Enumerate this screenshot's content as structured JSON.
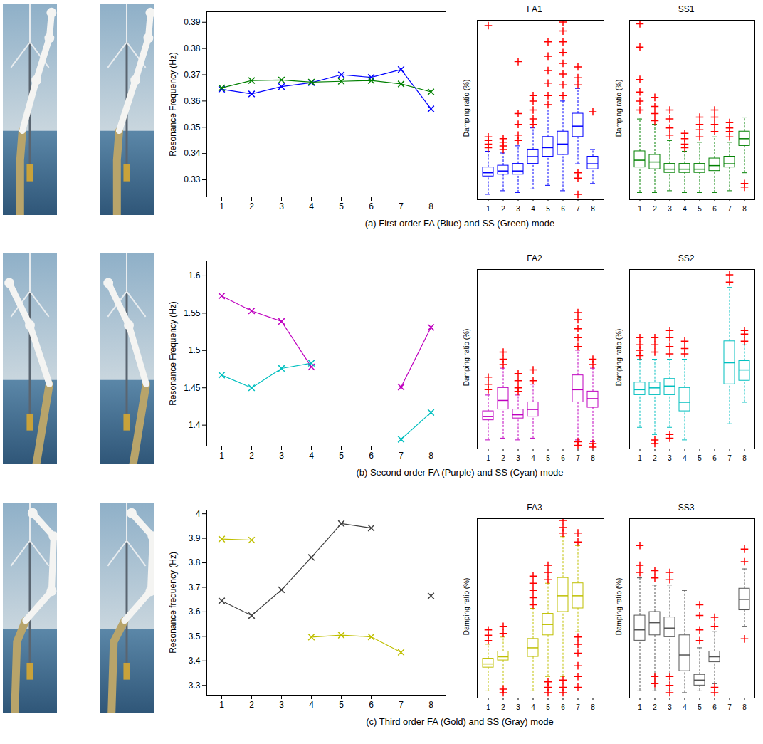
{
  "chart_data": [
    {
      "type": "line",
      "caption": "(a) First order FA (Blue) and SS (Green) mode",
      "ylabel": "Resonance Frequency (Hz)",
      "x": [
        1,
        2,
        3,
        4,
        5,
        6,
        7,
        8
      ],
      "xlim": [
        0.5,
        8.5
      ],
      "xticks": [
        1,
        2,
        3,
        4,
        5,
        6,
        7,
        8
      ],
      "ylim": [
        0.3235,
        0.394
      ],
      "yticks": [
        0.33,
        0.34,
        0.35,
        0.36,
        0.37,
        0.38,
        0.39
      ],
      "marker": "x",
      "series": [
        {
          "color": "#0000ff",
          "values": [
            0.3645,
            0.3627,
            0.3655,
            0.367,
            0.37,
            0.369,
            0.372,
            0.357
          ]
        },
        {
          "color": "#008000",
          "values": [
            0.365,
            0.3678,
            0.368,
            0.3672,
            0.3675,
            0.3678,
            0.3665,
            0.3635
          ]
        }
      ]
    },
    {
      "type": "box",
      "title": "FA1",
      "ylabel": "Damping ratio (%)",
      "categories": [
        "1",
        "2",
        "3",
        "4",
        "5",
        "6",
        "7",
        "8"
      ],
      "ylim": [
        0,
        1
      ],
      "tick_labels": "x",
      "color": "#0000ff",
      "boxes": {
        "low": [
          0.03,
          0.05,
          0.04,
          0.06,
          0.08,
          0.05,
          0.2,
          0.09
        ],
        "q1": [
          0.13,
          0.14,
          0.14,
          0.2,
          0.24,
          0.25,
          0.35,
          0.17
        ],
        "median": [
          0.15,
          0.16,
          0.16,
          0.24,
          0.29,
          0.31,
          0.41,
          0.2
        ],
        "q3": [
          0.18,
          0.19,
          0.2,
          0.28,
          0.35,
          0.38,
          0.48,
          0.24
        ],
        "high": [
          0.27,
          0.26,
          0.3,
          0.4,
          0.5,
          0.55,
          0.62,
          0.28
        ],
        "outliers": [
          [
            0.29,
            0.31,
            0.33,
            0.35,
            0.97
          ],
          [
            0.28,
            0.3,
            0.32,
            0.34
          ],
          [
            0.33,
            0.36,
            0.42,
            0.48,
            0.77
          ],
          [
            0.42,
            0.45,
            0.5,
            0.55,
            0.58
          ],
          [
            0.53,
            0.58,
            0.65,
            0.72,
            0.8,
            0.88
          ],
          [
            0.58,
            0.64,
            0.7,
            0.76,
            0.82,
            0.88,
            0.94,
            0.99
          ],
          [
            0.03,
            0.12,
            0.15,
            0.64,
            0.68,
            0.74
          ],
          [
            0.49
          ]
        ]
      }
    },
    {
      "type": "box",
      "title": "SS1",
      "ylabel": "Damping ratio (%)",
      "categories": [
        "1",
        "2",
        "3",
        "4",
        "5",
        "6",
        "7",
        "8"
      ],
      "ylim": [
        0,
        1
      ],
      "tick_labels": "x",
      "color": "#008000",
      "boxes": {
        "low": [
          0.04,
          0.04,
          0.05,
          0.04,
          0.04,
          0.04,
          0.05,
          0.15
        ],
        "q1": [
          0.18,
          0.17,
          0.15,
          0.15,
          0.15,
          0.16,
          0.18,
          0.3
        ],
        "median": [
          0.22,
          0.21,
          0.17,
          0.17,
          0.17,
          0.19,
          0.2,
          0.34
        ],
        "q3": [
          0.27,
          0.25,
          0.2,
          0.2,
          0.2,
          0.23,
          0.24,
          0.38
        ],
        "high": [
          0.45,
          0.42,
          0.33,
          0.27,
          0.32,
          0.35,
          0.32,
          0.46
        ],
        "outliers": [
          [
            0.5,
            0.55,
            0.6,
            0.67,
            0.85,
            0.98
          ],
          [
            0.44,
            0.48,
            0.52,
            0.57
          ],
          [
            0.36,
            0.4,
            0.45,
            0.5
          ],
          [
            0.29,
            0.31,
            0.34,
            0.37
          ],
          [
            0.35,
            0.39,
            0.42,
            0.46
          ],
          [
            0.38,
            0.42,
            0.46,
            0.5
          ],
          [
            0.35,
            0.38,
            0.4,
            0.43
          ],
          [
            0.07,
            0.09
          ]
        ]
      }
    },
    {
      "type": "line",
      "caption": "(b) Second order FA (Purple) and SS (Cyan) mode",
      "ylabel": "Resonance Frequency (Hz)",
      "x": [
        1,
        2,
        3,
        4,
        5,
        6,
        7,
        8
      ],
      "xlim": [
        0.5,
        8.5
      ],
      "xticks": [
        1,
        2,
        3,
        4,
        5,
        6,
        7,
        8
      ],
      "ylim": [
        1.372,
        1.62
      ],
      "yticks": [
        1.4,
        1.45,
        1.5,
        1.55,
        1.6
      ],
      "marker": "x",
      "series": [
        {
          "color": "#bf00bf",
          "values": [
            1.573,
            1.553,
            1.539,
            1.478,
            null,
            null,
            1.451,
            1.531
          ]
        },
        {
          "color": "#00bfbf",
          "values": [
            1.467,
            1.45,
            1.476,
            1.483,
            null,
            null,
            1.381,
            1.417
          ]
        }
      ]
    },
    {
      "type": "box",
      "title": "FA2",
      "ylabel": "Damping ratio (%)",
      "categories": [
        "1",
        "2",
        "3",
        "4",
        "5",
        "6",
        "7",
        "8"
      ],
      "ylim": [
        0,
        1
      ],
      "tick_labels": "x",
      "color": "#bf00bf",
      "boxes": {
        "low": [
          0.05,
          0.06,
          0.05,
          0.06,
          null,
          null,
          0.05,
          0.04
        ],
        "q1": [
          0.16,
          0.22,
          0.17,
          0.18,
          null,
          null,
          0.26,
          0.23
        ],
        "median": [
          0.18,
          0.27,
          0.19,
          0.22,
          null,
          null,
          0.33,
          0.28
        ],
        "q3": [
          0.21,
          0.34,
          0.22,
          0.26,
          null,
          null,
          0.41,
          0.32
        ],
        "high": [
          0.3,
          0.45,
          0.3,
          0.36,
          null,
          null,
          0.55,
          0.45
        ],
        "outliers": [
          [
            0.33,
            0.36,
            0.4
          ],
          [
            0.47,
            0.5,
            0.54
          ],
          [
            0.32,
            0.34,
            0.38,
            0.42
          ],
          [
            0.38,
            0.44
          ],
          [],
          [],
          [
            0.02,
            0.04,
            0.57,
            0.62,
            0.67,
            0.72,
            0.76
          ],
          [
            0.01,
            0.03,
            0.47,
            0.5
          ]
        ]
      }
    },
    {
      "type": "box",
      "title": "SS2",
      "ylabel": "Damping ratio (%)",
      "categories": [
        "1",
        "2",
        "3",
        "4",
        "5",
        "6",
        "7",
        "8"
      ],
      "ylim": [
        0,
        1
      ],
      "tick_labels": "x",
      "color": "#00bfbf",
      "boxes": {
        "low": [
          0.12,
          0.08,
          0.12,
          0.05,
          null,
          null,
          0.14,
          0.26
        ],
        "q1": [
          0.3,
          0.3,
          0.3,
          0.21,
          null,
          null,
          0.36,
          0.38
        ],
        "median": [
          0.33,
          0.34,
          0.35,
          0.26,
          null,
          null,
          0.48,
          0.44
        ],
        "q3": [
          0.37,
          0.37,
          0.39,
          0.34,
          null,
          null,
          0.6,
          0.49
        ],
        "high": [
          0.5,
          0.5,
          0.5,
          0.5,
          null,
          null,
          0.9,
          0.58
        ],
        "outliers": [
          [
            0.52,
            0.55,
            0.58,
            0.62
          ],
          [
            0.03,
            0.05,
            0.54,
            0.58,
            0.62
          ],
          [
            0.06,
            0.08,
            0.53,
            0.57,
            0.62,
            0.66
          ],
          [
            0.53,
            0.56,
            0.6
          ],
          [],
          [],
          [
            0.93,
            0.97
          ],
          [
            0.6,
            0.64,
            0.66
          ]
        ]
      }
    },
    {
      "type": "line",
      "caption": "(c) Third order FA (Gold) and SS (Gray) mode",
      "ylabel": "Resonance frequency (Hz)",
      "x": [
        1,
        2,
        3,
        4,
        5,
        6,
        7,
        8
      ],
      "xlim": [
        0.5,
        8.5
      ],
      "xticks": [
        1,
        2,
        3,
        4,
        5,
        6,
        7,
        8
      ],
      "ylim": [
        3.26,
        4.015
      ],
      "yticks": [
        3.3,
        3.4,
        3.5,
        3.6,
        3.7,
        3.8,
        3.9,
        4
      ],
      "marker": "x",
      "series": [
        {
          "color": "#bfbf00",
          "values": [
            3.897,
            3.893,
            null,
            3.497,
            3.505,
            3.498,
            3.435,
            null
          ]
        },
        {
          "color": "#404040",
          "values": [
            3.645,
            3.585,
            3.69,
            3.822,
            3.96,
            3.942,
            null,
            3.665
          ]
        }
      ]
    },
    {
      "type": "box",
      "title": "FA3",
      "ylabel": "Damping ratio (%)",
      "categories": [
        "1",
        "2",
        "3",
        "4",
        "5",
        "6",
        "7",
        "8"
      ],
      "ylim": [
        0,
        1
      ],
      "tick_labels": "x",
      "color": "#bfbf00",
      "boxes": {
        "low": [
          0.04,
          0.04,
          null,
          0.04,
          0.12,
          0.12,
          0.37,
          null
        ],
        "q1": [
          0.17,
          0.21,
          null,
          0.23,
          0.35,
          0.48,
          0.5,
          null
        ],
        "median": [
          0.19,
          0.23,
          null,
          0.28,
          0.41,
          0.57,
          0.57,
          null
        ],
        "q3": [
          0.22,
          0.26,
          null,
          0.33,
          0.47,
          0.67,
          0.64,
          null
        ],
        "high": [
          0.3,
          0.34,
          null,
          0.5,
          0.64,
          0.9,
          0.85,
          null
        ],
        "outliers": [
          [
            0.32,
            0.35,
            0.38
          ],
          [
            0.03,
            0.05,
            0.36,
            0.4
          ],
          [],
          [
            0.52,
            0.56,
            0.6,
            0.64,
            0.68
          ],
          [
            0.03,
            0.06,
            0.09,
            0.66,
            0.7,
            0.74
          ],
          [
            0.03,
            0.06,
            0.1,
            0.92,
            0.95,
            0.99
          ],
          [
            0.06,
            0.12,
            0.18,
            0.25,
            0.3,
            0.34,
            0.87,
            0.92
          ],
          []
        ]
      }
    },
    {
      "type": "box",
      "title": "SS3",
      "ylabel": "Damping ratio (%)",
      "categories": [
        "1",
        "2",
        "3",
        "4",
        "5",
        "6",
        "7",
        "8"
      ],
      "ylim": [
        0,
        1
      ],
      "tick_labels": "x",
      "color": "#555555",
      "boxes": {
        "low": [
          0.04,
          0.04,
          0.04,
          0.03,
          0.04,
          0.08,
          null,
          0.4
        ],
        "q1": [
          0.32,
          0.35,
          0.34,
          0.15,
          0.07,
          0.2,
          null,
          0.49
        ],
        "median": [
          0.38,
          0.42,
          0.39,
          0.24,
          0.1,
          0.23,
          null,
          0.55
        ],
        "q3": [
          0.46,
          0.48,
          0.45,
          0.35,
          0.13,
          0.26,
          null,
          0.61
        ],
        "high": [
          0.67,
          0.63,
          0.63,
          0.6,
          0.28,
          0.37,
          null,
          0.72
        ],
        "outliers": [
          [
            0.7,
            0.74,
            0.85
          ],
          [
            0.08,
            0.12,
            0.67,
            0.71
          ],
          [
            0.03,
            0.07,
            0.12,
            0.66,
            0.7
          ],
          [],
          [
            0.32,
            0.38,
            0.46,
            0.52
          ],
          [
            0.03,
            0.06,
            0.4,
            0.45
          ],
          [],
          [
            0.33,
            0.76,
            0.83
          ]
        ]
      }
    }
  ]
}
